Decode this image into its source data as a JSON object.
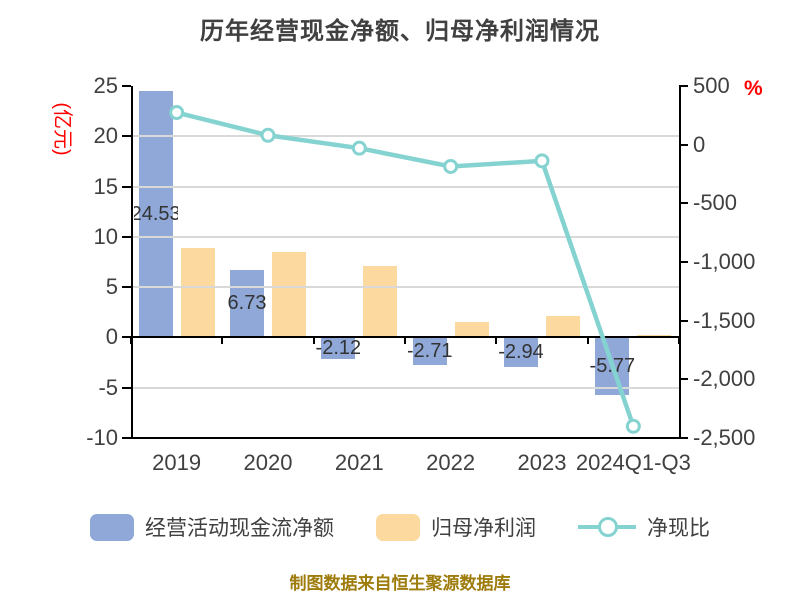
{
  "title": "历年经营现金净额、归母净利润情况",
  "footer": "制图数据来自恒生聚源数据库",
  "colors": {
    "bar_blue": "#8FA8D8",
    "bar_orange": "#FCD99E",
    "line_teal": "#85D3D1",
    "text_dark": "#404040",
    "axis_black": "#000000",
    "grid_gray": "#D9D9D9",
    "unit_red": "#FF0000",
    "footer_gold": "#9E7C0C"
  },
  "legend": {
    "items": [
      {
        "label": "经营活动现金流净额"
      },
      {
        "label": "归母净利润"
      },
      {
        "label": "净现比"
      }
    ]
  },
  "chart_data": {
    "type": "combo-bar-line",
    "categories": [
      "2019",
      "2020",
      "2021",
      "2022",
      "2023",
      "2024Q1-Q3"
    ],
    "left_axis": {
      "label": "(亿元)",
      "range": [
        -10,
        25
      ],
      "ticks": [
        {
          "v": 25,
          "label": "25"
        },
        {
          "v": 20,
          "label": "20"
        },
        {
          "v": 15,
          "label": "15"
        },
        {
          "v": 10,
          "label": "10"
        },
        {
          "v": 5,
          "label": "5"
        },
        {
          "v": 0,
          "label": "0"
        },
        {
          "v": -5,
          "label": "-5"
        },
        {
          "v": -10,
          "label": "-10"
        }
      ]
    },
    "right_axis": {
      "label": "%",
      "range": [
        -2500,
        500
      ],
      "ticks": [
        {
          "v": 500,
          "label": "500"
        },
        {
          "v": 0,
          "label": "0"
        },
        {
          "v": -500,
          "label": "-500"
        },
        {
          "v": -1000,
          "label": "-1,000"
        },
        {
          "v": -1500,
          "label": "-1,500"
        },
        {
          "v": -2000,
          "label": "-2,000"
        },
        {
          "v": -2500,
          "label": "-2,500"
        }
      ]
    },
    "series": [
      {
        "name": "经营活动现金流净额",
        "type": "bar",
        "axis": "left",
        "values": [
          24.53,
          6.73,
          -2.12,
          -2.71,
          -2.94,
          -5.77
        ],
        "labels": [
          "24.53",
          "6.73",
          "-2.12",
          "-2.71",
          "-2.94",
          "-5.77"
        ]
      },
      {
        "name": "归母净利润",
        "type": "bar",
        "axis": "left",
        "values": [
          8.9,
          8.5,
          7.1,
          1.5,
          2.1,
          0.24
        ],
        "labels": []
      },
      {
        "name": "净现比",
        "type": "line",
        "axis": "right",
        "unit": "%",
        "values": [
          274,
          80,
          -30,
          -186,
          -138,
          -2400
        ]
      }
    ],
    "grid": true,
    "legend_position": "bottom"
  }
}
